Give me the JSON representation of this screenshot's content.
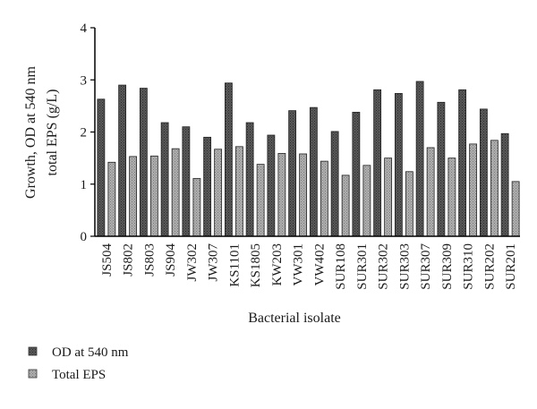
{
  "chart_data": {
    "type": "bar",
    "title": "",
    "xlabel": "Bacterial isolate",
    "ylabel": [
      "Growth, OD at 540 nm",
      "total EPS (g/L)"
    ],
    "ylim": [
      0,
      4
    ],
    "yticks": [
      "0",
      "1",
      "2",
      "3",
      "4"
    ],
    "categories": [
      "JS504",
      "JS802",
      "JS803",
      "JS904",
      "JW302",
      "JW307",
      "KS1101",
      "KS1805",
      "KW203",
      "VW301",
      "VW402",
      "SUR108",
      "SUR301",
      "SUR302",
      "SUR303",
      "SUR307",
      "SUR309",
      "SUR310",
      "SUR202",
      "SUR201"
    ],
    "series": [
      {
        "name": "OD at 540 nm",
        "color": "#4a4a4a",
        "values": [
          2.63,
          2.9,
          2.84,
          2.18,
          2.1,
          1.9,
          2.94,
          2.18,
          1.94,
          2.41,
          2.47,
          2.01,
          2.38,
          2.81,
          2.74,
          2.97,
          2.57,
          2.81,
          2.44,
          1.97
        ]
      },
      {
        "name": "Total EPS",
        "color": "#9a9a9a",
        "values": [
          1.42,
          1.53,
          1.54,
          1.68,
          1.11,
          1.67,
          1.72,
          1.38,
          1.59,
          1.58,
          1.44,
          1.17,
          1.36,
          1.5,
          1.24,
          1.7,
          1.5,
          1.77,
          1.84,
          1.05
        ]
      }
    ],
    "grid": false,
    "legend_position": "bottom-left"
  }
}
